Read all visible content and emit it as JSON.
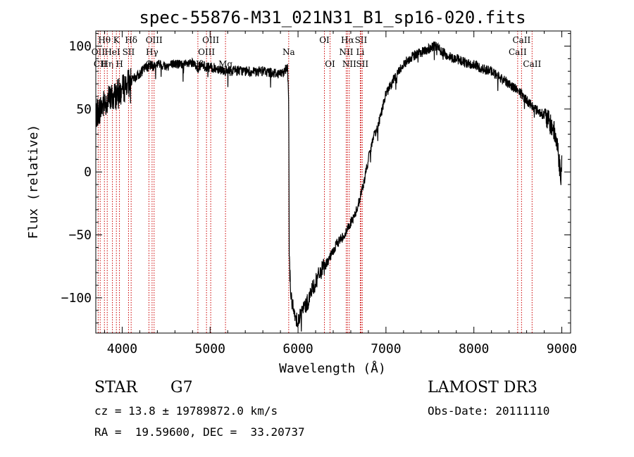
{
  "chart_data": {
    "type": "line",
    "title": "spec-55876-M31_021N31_B1_sp16-020.fits",
    "xlabel": "Wavelength (Å)",
    "ylabel": "Flux (relative)",
    "xlim": [
      3700,
      9100
    ],
    "ylim": [
      -128,
      112
    ],
    "xticks": [
      4000,
      5000,
      6000,
      7000,
      8000,
      9000
    ],
    "xtick_labels": [
      "4000",
      "5000",
      "6000",
      "7000",
      "8000",
      "9000"
    ],
    "yticks": [
      -100,
      -50,
      0,
      50,
      100
    ],
    "ytick_labels": [
      "−100",
      "−50",
      "0",
      "50",
      "100"
    ],
    "grid": false,
    "series": [
      {
        "name": "flux",
        "noise_seed": 7,
        "x": [
          3700,
          3750,
          3800,
          3850,
          3900,
          3950,
          4000,
          4050,
          4100,
          4150,
          4200,
          4250,
          4300,
          4350,
          4400,
          4500,
          4600,
          4700,
          4800,
          4860,
          4900,
          5000,
          5100,
          5200,
          5300,
          5400,
          5500,
          5600,
          5700,
          5800,
          5850,
          5880,
          5893,
          5896,
          5900,
          5920,
          5950,
          6000,
          6050,
          6100,
          6150,
          6200,
          6250,
          6300,
          6350,
          6400,
          6450,
          6500,
          6550,
          6563,
          6600,
          6650,
          6700,
          6750,
          6800,
          6850,
          6900,
          6950,
          7000,
          7100,
          7200,
          7300,
          7400,
          7500,
          7550,
          7600,
          7650,
          7700,
          7800,
          7900,
          8000,
          8100,
          8200,
          8300,
          8400,
          8500,
          8600,
          8700,
          8800,
          8900,
          8950,
          8990,
          9000
        ],
        "y": [
          45,
          50,
          55,
          58,
          60,
          62,
          65,
          70,
          72,
          75,
          78,
          82,
          85,
          84,
          86,
          84,
          86,
          85,
          86,
          83,
          84,
          83,
          82,
          80,
          81,
          80,
          79,
          80,
          79,
          78,
          80,
          85,
          60,
          20,
          -70,
          -98,
          -112,
          -118,
          -110,
          -105,
          -95,
          -88,
          -80,
          -75,
          -70,
          -63,
          -56,
          -52,
          -48,
          -45,
          -40,
          -34,
          -22,
          -8,
          10,
          25,
          35,
          48,
          62,
          75,
          86,
          92,
          95,
          98,
          100,
          98,
          95,
          92,
          90,
          87,
          85,
          82,
          80,
          75,
          70,
          65,
          57,
          50,
          45,
          35,
          22,
          -5,
          5
        ]
      }
    ],
    "line_markers": [
      {
        "wl": 3727,
        "label": "OII",
        "row": 1
      },
      {
        "wl": 3750,
        "label": "CII",
        "row": 2
      },
      {
        "wl": 3798,
        "label": "Hθ",
        "row": 0
      },
      {
        "wl": 3830,
        "label": "Hη",
        "row": 2
      },
      {
        "wl": 3889,
        "label": "HeI",
        "row": 1
      },
      {
        "wl": 3934,
        "label": "K",
        "row": 0
      },
      {
        "wl": 3969,
        "label": "H",
        "row": 2
      },
      {
        "wl": 4072,
        "label": "SII",
        "row": 1
      },
      {
        "wl": 4102,
        "label": "Hδ",
        "row": 0
      },
      {
        "wl": 4304,
        "label": "G",
        "row": 2
      },
      {
        "wl": 4340,
        "label": "Hγ",
        "row": 1
      },
      {
        "wl": 4363,
        "label": "OIII",
        "row": 0
      },
      {
        "wl": 4861,
        "label": "Hβ",
        "row": 2
      },
      {
        "wl": 4959,
        "label": "OIII",
        "row": 1
      },
      {
        "wl": 5007,
        "label": "OIII",
        "row": 0
      },
      {
        "wl": 5175,
        "label": "Mg",
        "row": 2
      },
      {
        "wl": 5894,
        "label": "Na",
        "row": 1
      },
      {
        "wl": 6300,
        "label": "OI",
        "row": 0
      },
      {
        "wl": 6364,
        "label": "OI",
        "row": 2
      },
      {
        "wl": 6548,
        "label": "NII",
        "row": 1
      },
      {
        "wl": 6563,
        "label": "Hα",
        "row": 0
      },
      {
        "wl": 6583,
        "label": "NII",
        "row": 2
      },
      {
        "wl": 6708,
        "label": "Li",
        "row": 1
      },
      {
        "wl": 6716,
        "label": "SII",
        "row": 0
      },
      {
        "wl": 6731,
        "label": "SII",
        "row": 2
      },
      {
        "wl": 8498,
        "label": "CaII",
        "row": 1
      },
      {
        "wl": 8542,
        "label": "CaII",
        "row": 0
      },
      {
        "wl": 8662,
        "label": "CaII",
        "row": 2
      }
    ],
    "colors": {
      "spectrum": "#000000",
      "marker_line": "#cc0000",
      "axes": "#000000"
    }
  },
  "info": {
    "object_type": "STAR",
    "subclass": "G7",
    "survey": "LAMOST DR3",
    "redshift_line": "cz = 13.8 ± 19789872.0 km/s",
    "obs_date_line": "Obs-Date: 20111110",
    "coords_line": "RA =  19.59600, DEC =  33.20737"
  }
}
